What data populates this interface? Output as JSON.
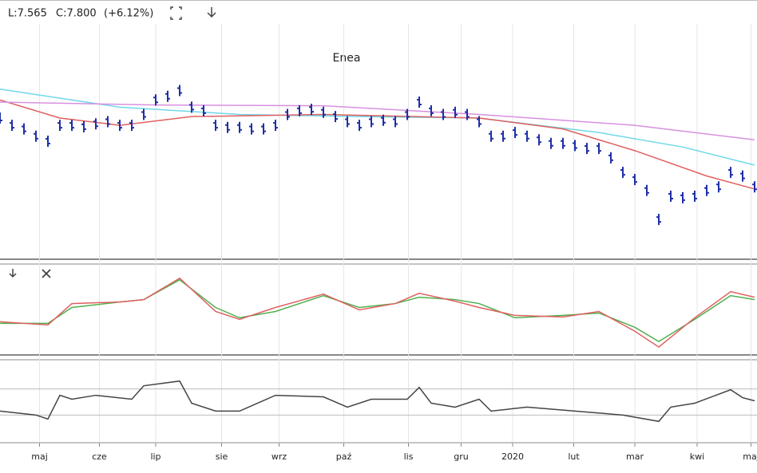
{
  "chart_data": [
    {
      "type": "price",
      "title": "Enea",
      "header": [
        "L:7.565",
        "C:7.800",
        "(+6.12%)"
      ],
      "ylim": [
        5.8,
        12.3
      ],
      "xlim": [
        0,
        63.2
      ],
      "xticks": [
        {
          "value": 3.3,
          "label": "maj"
        },
        {
          "value": 8.3,
          "label": "cze"
        },
        {
          "value": 13,
          "label": "lip"
        },
        {
          "value": 18.5,
          "label": "sie"
        },
        {
          "value": 23.3,
          "label": "wrz"
        },
        {
          "value": 28.7,
          "label": "paź"
        },
        {
          "value": 34.1,
          "label": "lis"
        },
        {
          "value": 38.5,
          "label": "gru"
        },
        {
          "value": 42.8,
          "label": "2020"
        },
        {
          "value": 47.9,
          "label": "lut"
        },
        {
          "value": 53,
          "label": "mar"
        },
        {
          "value": 58.2,
          "label": "kwi"
        },
        {
          "value": 62.7,
          "label": "maj"
        }
      ],
      "x": [
        0,
        1,
        2,
        3,
        4,
        5,
        6,
        7,
        8,
        9,
        10,
        11,
        12,
        13,
        14,
        15,
        16,
        17,
        18,
        19,
        20,
        21,
        22,
        23,
        24,
        25,
        26,
        27,
        28,
        29,
        30,
        31,
        32,
        33,
        34,
        35,
        36,
        37,
        38,
        39,
        40,
        41,
        42,
        43,
        44,
        45,
        46,
        47,
        48,
        49,
        50,
        51,
        52,
        53,
        54,
        55,
        56,
        57,
        58,
        59,
        60,
        61,
        62,
        63
      ],
      "values": [
        9.7,
        9.5,
        9.4,
        9.2,
        9.06,
        9.5,
        9.5,
        9.46,
        9.54,
        9.6,
        9.5,
        9.5,
        9.8,
        10.2,
        10.3,
        10.46,
        10.0,
        9.9,
        9.5,
        9.44,
        9.44,
        9.4,
        9.4,
        9.5,
        9.8,
        9.9,
        9.94,
        9.86,
        9.74,
        9.6,
        9.5,
        9.6,
        9.64,
        9.6,
        9.8,
        10.14,
        9.9,
        9.8,
        9.86,
        9.8,
        9.6,
        9.2,
        9.2,
        9.3,
        9.2,
        9.1,
        9.0,
        9.0,
        8.94,
        8.86,
        8.86,
        8.6,
        8.2,
        8.0,
        7.7,
        6.9,
        7.54,
        7.5,
        7.54,
        7.7,
        7.8,
        8.2,
        8.1,
        7.8
      ],
      "color": "#1f2fa8",
      "series": [
        {
          "color": "#6fd8e8",
          "x": [
            0,
            10,
            20,
            30,
            40,
            50,
            57,
            63
          ],
          "values": [
            10.5,
            10.0,
            9.8,
            9.74,
            9.7,
            9.3,
            8.9,
            8.4
          ]
        },
        {
          "color": "#e06060",
          "x": [
            0,
            5,
            10,
            16,
            27,
            40,
            47,
            53,
            59,
            63
          ],
          "values": [
            10.2,
            9.7,
            9.5,
            9.74,
            9.8,
            9.7,
            9.4,
            8.8,
            8.1,
            7.74
          ]
        },
        {
          "color": "#d890e0",
          "x": [
            0,
            13,
            27,
            40,
            53,
            63
          ],
          "values": [
            10.14,
            10.06,
            10.04,
            9.8,
            9.5,
            9.1
          ]
        }
      ]
    },
    {
      "type": "line",
      "ylim": [
        -6.7,
        4.8
      ],
      "series": [
        {
          "color": "#50b050",
          "x": [
            0,
            4,
            6,
            10,
            12,
            15,
            18,
            20,
            23,
            27,
            30,
            33,
            35,
            38,
            40,
            43,
            47,
            50,
            53,
            55,
            58,
            61,
            63
          ],
          "values": [
            -2.7,
            -2.7,
            -0.7,
            0,
            0.3,
            2.8,
            -0.7,
            -2.0,
            -1.2,
            0.8,
            -0.7,
            -0.2,
            0.6,
            0.3,
            -0.2,
            -2.0,
            -1.7,
            -1.4,
            -3.2,
            -5.0,
            -2.2,
            0.8,
            0.3
          ]
        },
        {
          "color": "#e06060",
          "x": [
            0,
            4,
            6,
            10,
            12,
            15,
            18,
            20,
            23,
            27,
            30,
            33,
            35,
            38,
            40,
            43,
            47,
            50,
            53,
            55,
            58,
            61,
            63
          ],
          "values": [
            -2.5,
            -2.9,
            -0.2,
            0,
            0.3,
            3.0,
            -1.2,
            -2.2,
            -0.7,
            1.0,
            -1.0,
            -0.2,
            1.1,
            0.1,
            -0.7,
            -1.7,
            -1.9,
            -1.2,
            -3.7,
            -5.7,
            -2.0,
            1.3,
            0.6
          ]
        }
      ]
    },
    {
      "type": "line",
      "ylim": [
        -3.5,
        7
      ],
      "refs": [
        3.3,
        0
      ],
      "series": [
        {
          "color": "#444444",
          "x": [
            0,
            3,
            4,
            5,
            6,
            8,
            11,
            12,
            15,
            16,
            18,
            20,
            23,
            27,
            29,
            31,
            34,
            35,
            36,
            38,
            40,
            41,
            44,
            48,
            52,
            55,
            56,
            58,
            61,
            62,
            63
          ],
          "values": [
            0.5,
            0,
            -0.5,
            2.5,
            2.0,
            2.5,
            2.0,
            3.7,
            4.3,
            1.5,
            0.5,
            0.5,
            2.5,
            2.3,
            1.0,
            2.0,
            2.0,
            3.5,
            1.5,
            1.0,
            2.0,
            0.5,
            1.0,
            0.5,
            0,
            -0.8,
            1.0,
            1.5,
            3.2,
            2.2,
            1.8
          ]
        }
      ]
    }
  ]
}
